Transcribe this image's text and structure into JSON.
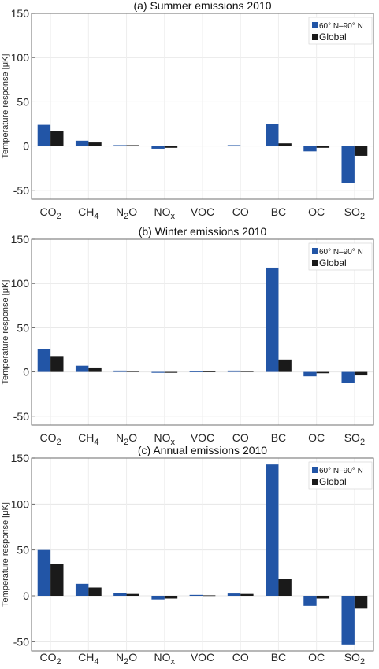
{
  "figure": {
    "ylabel": "Temperature response [μK]",
    "categories": [
      {
        "base": "CO",
        "sub": "2"
      },
      {
        "base": "CH",
        "sub": "4"
      },
      {
        "base": "N",
        "sub": "2",
        "tail": "O"
      },
      {
        "base": "NO",
        "sub": "x"
      },
      {
        "base": "VOC"
      },
      {
        "base": "CO"
      },
      {
        "base": "BC"
      },
      {
        "base": "OC"
      },
      {
        "base": "SO",
        "sub": "2"
      }
    ],
    "series_colors": [
      "#2255a6",
      "#1a1a1a"
    ]
  },
  "chart_data": [
    {
      "type": "bar",
      "title": "(a) Summer emissions 2010",
      "ylabel": "Temperature response [μK]",
      "categories": [
        "CO2",
        "CH4",
        "N2O",
        "NOx",
        "VOC",
        "CO",
        "BC",
        "OC",
        "SO2"
      ],
      "ylim": [
        -60,
        150
      ],
      "yticks": [
        -50,
        0,
        50,
        100,
        150
      ],
      "grid": true,
      "legend_position": "top-right",
      "series": [
        {
          "name": "60° N–90° N",
          "color": "#2255a6",
          "values": [
            24,
            6,
            1,
            -3,
            0.5,
            1,
            25,
            -6,
            -42
          ]
        },
        {
          "name": "Global",
          "color": "#1a1a1a",
          "values": [
            17,
            4,
            1,
            -2,
            0.5,
            0.5,
            3,
            -2,
            -11
          ]
        }
      ]
    },
    {
      "type": "bar",
      "title": "(b) Winter emissions 2010",
      "ylabel": "Temperature response [μK]",
      "categories": [
        "CO2",
        "CH4",
        "N2O",
        "NOx",
        "VOC",
        "CO",
        "BC",
        "OC",
        "SO2"
      ],
      "ylim": [
        -60,
        150
      ],
      "yticks": [
        -50,
        0,
        50,
        100,
        150
      ],
      "grid": true,
      "legend_position": "top-right",
      "series": [
        {
          "name": "60° N–90° N",
          "color": "#2255a6",
          "values": [
            26,
            7,
            1.5,
            -1,
            0.5,
            1.5,
            118,
            -5,
            -12
          ]
        },
        {
          "name": "Global",
          "color": "#1a1a1a",
          "values": [
            18,
            5,
            1,
            -1,
            0.5,
            1,
            14,
            -1.5,
            -4
          ]
        }
      ]
    },
    {
      "type": "bar",
      "title": "(c) Annual emissions 2010",
      "ylabel": "Temperature response [μK]",
      "categories": [
        "CO2",
        "CH4",
        "N2O",
        "NOx",
        "VOC",
        "CO",
        "BC",
        "OC",
        "SO2"
      ],
      "ylim": [
        -60,
        150
      ],
      "yticks": [
        -50,
        0,
        50,
        100,
        150
      ],
      "grid": true,
      "legend_position": "top-right",
      "series": [
        {
          "name": "60° N–90° N",
          "color": "#2255a6",
          "values": [
            50,
            13,
            3,
            -4,
            1,
            2.5,
            143,
            -11,
            -53
          ]
        },
        {
          "name": "Global",
          "color": "#1a1a1a",
          "values": [
            35,
            9,
            2,
            -3,
            0.5,
            2,
            18,
            -3,
            -14
          ]
        }
      ]
    }
  ]
}
